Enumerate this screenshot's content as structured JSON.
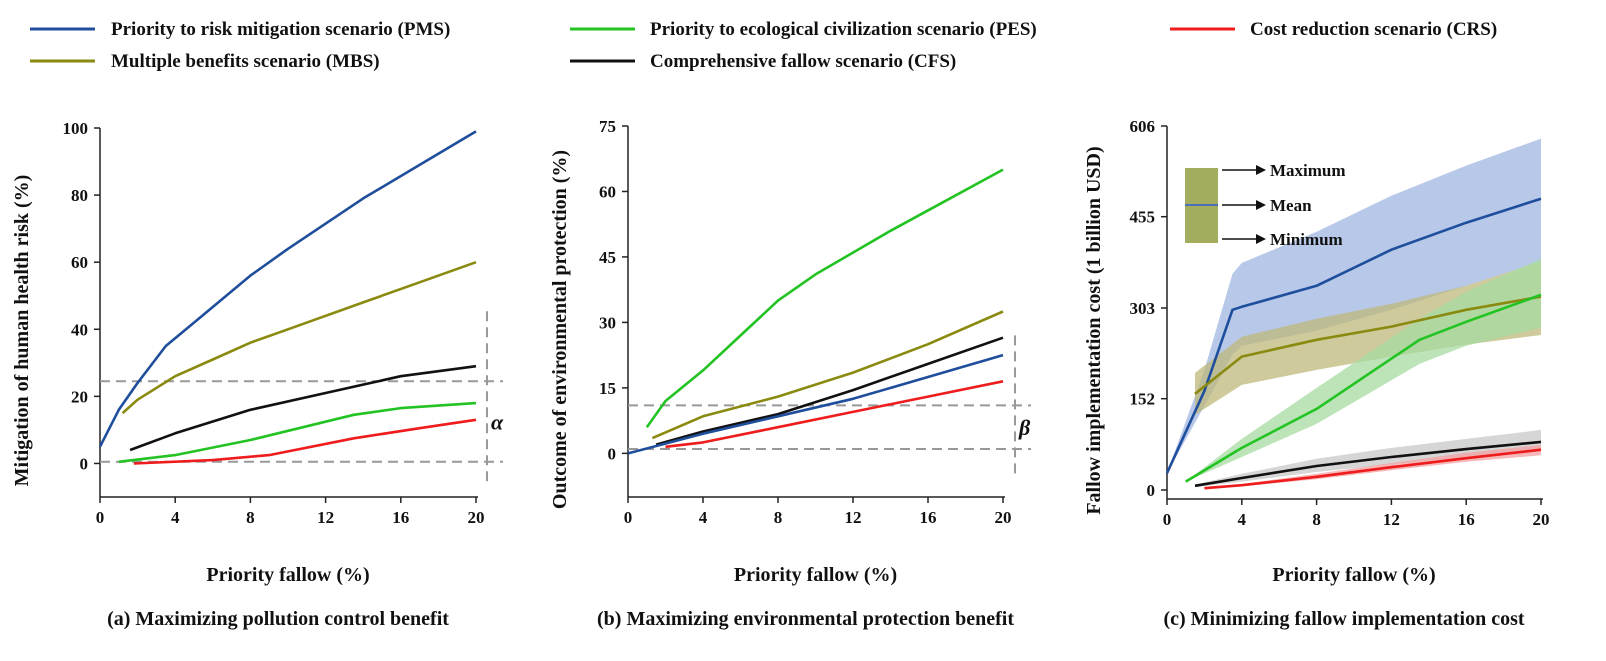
{
  "legend": [
    {
      "label": "Priority to risk mitigation scenario (PMS)",
      "color": "#1f4e9c"
    },
    {
      "label": "Priority to ecological civilization scenario (PES)",
      "color": "#22c322"
    },
    {
      "label": "Cost reduction scenario (CRS)",
      "color": "#ee1c1c"
    },
    {
      "label": "Multiple benefits scenario (MBS)",
      "color": "#8a8a10"
    },
    {
      "label": "Comprehensive fallow scenario (CFS)",
      "color": "#111111"
    }
  ],
  "chart_data": [
    {
      "type": "line",
      "caption": "(a) Maximizing pollution control benefit",
      "xlabel": "Priority fallow (%)",
      "ylabel": "Mitigation of human health risk (%)",
      "xlim": [
        0,
        20
      ],
      "ylim": [
        -10,
        100
      ],
      "x_ticks": [
        0,
        4,
        8,
        12,
        16,
        20
      ],
      "y_ticks": [
        0,
        20,
        40,
        60,
        80,
        100
      ],
      "series": [
        {
          "name": "PMS",
          "color": "#1f4e9c",
          "x": [
            0,
            1,
            2,
            3.5,
            5,
            8,
            10,
            14,
            17,
            20
          ],
          "y": [
            5,
            16,
            24,
            35,
            42,
            56,
            64,
            79,
            89,
            99
          ]
        },
        {
          "name": "MBS",
          "color": "#8a8a10",
          "x": [
            1.2,
            2,
            4,
            6,
            8,
            10,
            14,
            17,
            20
          ],
          "y": [
            15,
            19,
            26,
            31,
            36,
            40,
            48,
            54,
            60
          ]
        },
        {
          "name": "CFS",
          "color": "#111111",
          "x": [
            1.6,
            4,
            8,
            12,
            16,
            20
          ],
          "y": [
            4,
            9,
            16,
            21,
            26,
            29
          ]
        },
        {
          "name": "PES",
          "color": "#22c322",
          "x": [
            1,
            4,
            8,
            13.5,
            16,
            20
          ],
          "y": [
            0.5,
            2.5,
            7,
            14.5,
            16.5,
            18
          ]
        },
        {
          "name": "CRS",
          "color": "#ee1c1c",
          "x": [
            1.8,
            6,
            9,
            13.5,
            17,
            20
          ],
          "y": [
            0,
            1,
            2.5,
            7.5,
            10.5,
            13
          ]
        }
      ],
      "bracket_label": "α",
      "ref_lines": [
        24.5,
        0.5
      ]
    },
    {
      "type": "line",
      "caption": "(b) Maximizing environmental protection benefit",
      "xlabel": "Priority fallow (%)",
      "ylabel": "Outcome of environmental protection (%)",
      "xlim": [
        0,
        20
      ],
      "ylim": [
        -10,
        75
      ],
      "x_ticks": [
        0,
        4,
        8,
        12,
        16,
        20
      ],
      "y_ticks": [
        0,
        15,
        30,
        45,
        60,
        75
      ],
      "series": [
        {
          "name": "PES",
          "color": "#22c322",
          "x": [
            1,
            2,
            4,
            6,
            8,
            10,
            14,
            17,
            20
          ],
          "y": [
            6,
            12,
            19,
            27,
            35,
            41,
            51,
            58,
            65
          ]
        },
        {
          "name": "MBS",
          "color": "#8a8a10",
          "x": [
            1.3,
            4,
            8,
            12,
            16,
            20
          ],
          "y": [
            3.5,
            8.5,
            13,
            18.5,
            25,
            32.5
          ]
        },
        {
          "name": "CFS",
          "color": "#111111",
          "x": [
            1.5,
            4,
            8,
            12,
            16,
            20
          ],
          "y": [
            2,
            5,
            9,
            14.5,
            20.5,
            26.5
          ]
        },
        {
          "name": "PMS",
          "color": "#1f4e9c",
          "x": [
            0,
            4,
            8,
            12,
            16,
            20
          ],
          "y": [
            0,
            4.5,
            8.5,
            12.5,
            17.5,
            22.5
          ]
        },
        {
          "name": "CRS",
          "color": "#ee1c1c",
          "x": [
            2,
            4,
            8,
            12,
            16,
            20
          ],
          "y": [
            1.5,
            2.5,
            6,
            9.5,
            13,
            16.5
          ]
        }
      ],
      "bracket_label": "β",
      "ref_lines": [
        11,
        1
      ]
    },
    {
      "type": "area",
      "caption": "(c) Minimizing fallow implementation cost",
      "xlabel": "Priority fallow (%)",
      "ylabel": "Fallow implementation cost (1 billion USD)",
      "xlim": [
        0,
        20
      ],
      "ylim": [
        -15,
        606
      ],
      "x_ticks": [
        0,
        4,
        8,
        12,
        16,
        20
      ],
      "y_ticks": [
        0,
        152,
        303,
        455,
        606
      ],
      "y_tick_labels": [
        "0",
        "152",
        "303",
        "455",
        "606"
      ],
      "inset_legend": [
        "Maximum",
        "Mean",
        "Minimum"
      ],
      "series": [
        {
          "name": "PMS",
          "color": "#1f4e9c",
          "band": "#9fb6e2",
          "x": [
            0,
            2,
            3.5,
            4,
            8,
            12,
            16,
            20
          ],
          "y": [
            28,
            165,
            300,
            305,
            340,
            400,
            445,
            485
          ],
          "upper": [
            28,
            200,
            360,
            378,
            430,
            490,
            540,
            585
          ],
          "lower": [
            28,
            140,
            225,
            240,
            265,
            300,
            340,
            380
          ]
        },
        {
          "name": "MBS",
          "color": "#8a8a10",
          "band": "#bdb87a",
          "x": [
            1.5,
            4,
            8,
            12,
            16,
            20
          ],
          "y": [
            160,
            222,
            250,
            272,
            300,
            322
          ],
          "upper": [
            195,
            255,
            285,
            310,
            340,
            380
          ],
          "lower": [
            125,
            175,
            200,
            222,
            242,
            258
          ]
        },
        {
          "name": "PES",
          "color": "#22c322",
          "band": "#a6dba0",
          "x": [
            1,
            4,
            8,
            13.5,
            16,
            20
          ],
          "y": [
            14,
            70,
            135,
            250,
            280,
            325
          ],
          "upper": [
            14,
            85,
            170,
            285,
            330,
            385
          ],
          "lower": [
            14,
            55,
            110,
            210,
            240,
            270
          ]
        },
        {
          "name": "CFS",
          "color": "#111111",
          "band": "#c8c8c8",
          "x": [
            1.5,
            4,
            8,
            12,
            16,
            20
          ],
          "y": [
            7,
            20,
            40,
            55,
            68,
            80
          ],
          "upper": [
            9,
            27,
            52,
            70,
            85,
            100
          ],
          "lower": [
            5,
            14,
            30,
            43,
            55,
            66
          ]
        },
        {
          "name": "CRS",
          "color": "#ee1c1c",
          "band": "#f3a0a0",
          "x": [
            2,
            4,
            8,
            12,
            16,
            20
          ],
          "y": [
            3,
            8,
            22,
            38,
            53,
            67
          ],
          "upper": [
            4,
            10,
            27,
            45,
            62,
            75
          ],
          "lower": [
            2,
            6,
            18,
            33,
            47,
            58
          ]
        }
      ]
    }
  ]
}
